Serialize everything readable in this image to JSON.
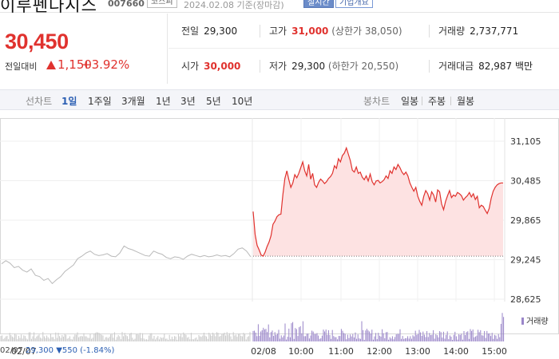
{
  "header": {
    "title": "이루펜다시스",
    "code": "007660",
    "market": "코스피",
    "date_text": "2024.02.08 기준(장마감)",
    "time_chip": "실시간",
    "info_chip": "기업개요"
  },
  "price": {
    "current": "30,450",
    "prev_label": "전일대비",
    "change": "1,150",
    "percent": "+3.92%",
    "direction": "up"
  },
  "stats": {
    "prev_close": {
      "label": "전일",
      "value": "29,300"
    },
    "high": {
      "label": "고가",
      "value": "31,000",
      "sub": "(상한가 38,050)"
    },
    "volume": {
      "label": "거래량",
      "value": "2,737,771"
    },
    "open": {
      "label": "시가",
      "value": "30,000"
    },
    "low": {
      "label": "저가",
      "value": "29,300",
      "sub": "(하한가 20,550)"
    },
    "amount": {
      "label": "거래대금",
      "value": "82,987 백만"
    }
  },
  "toolbar": {
    "line_chart_label": "선차트",
    "periods": [
      "1일",
      "1주일",
      "3개월",
      "1년",
      "3년",
      "5년",
      "10년"
    ],
    "active_period": "1일",
    "candle_label": "봉차트",
    "candles": [
      "일봉",
      "주봉",
      "월봉"
    ]
  },
  "chart_data": {
    "type": "line",
    "y_ticks": [
      "31,105",
      "30,485",
      "29,865",
      "29,245",
      "28,625"
    ],
    "x_ticks": [
      "02/07",
      "02/08",
      "10:00",
      "11:00",
      "12:00",
      "13:00",
      "14:00",
      "15:00"
    ],
    "ylim": [
      28625,
      31105
    ],
    "prev_close": 29300,
    "series": [
      {
        "name": "02/07",
        "values": [
          29180,
          29230,
          29190,
          29120,
          29140,
          29080,
          29050,
          29100,
          29000,
          28980,
          28920,
          28950,
          28870,
          28930,
          28980,
          29060,
          29110,
          29160,
          29260,
          29300,
          29350,
          29380,
          29330,
          29310,
          29320,
          29340,
          29300,
          29290,
          29350,
          29460,
          29420,
          29400,
          29370,
          29340,
          29310,
          29300,
          29380,
          29350,
          29330,
          29280,
          29260,
          29290,
          29280,
          29250,
          29300,
          29330,
          29310,
          29290,
          29310,
          29290,
          29300,
          29320,
          29300,
          29310,
          29290,
          29340,
          29410,
          29430,
          29380,
          29290
        ]
      },
      {
        "name": "02/08",
        "values": [
          30000,
          29640,
          29470,
          29400,
          29320,
          29300,
          29360,
          29450,
          29520,
          29620,
          29800,
          29850,
          29920,
          29950,
          29960,
          30270,
          30520,
          30640,
          30500,
          30380,
          30450,
          30580,
          30530,
          30600,
          30690,
          30780,
          30640,
          30560,
          30740,
          30510,
          30600,
          30420,
          30380,
          30460,
          30510,
          30480,
          30440,
          30470,
          30520,
          30550,
          30600,
          30720,
          30680,
          30830,
          30780,
          30880,
          30920,
          31000,
          30900,
          30800,
          30650,
          30620,
          30700,
          30600,
          30620,
          30540,
          30500,
          30560,
          30480,
          30590,
          30470,
          30420,
          30480,
          30490,
          30450,
          30470,
          30500,
          30560,
          30520,
          30640,
          30600,
          30700,
          30660,
          30740,
          30690,
          30620,
          30580,
          30620,
          30560,
          30450,
          30380,
          30320,
          30380,
          30240,
          30160,
          30100,
          30240,
          30330,
          30280,
          30180,
          30310,
          30260,
          30150,
          30340,
          30310,
          30120,
          30030,
          30160,
          30250,
          30330,
          30220,
          30260,
          30240,
          30300,
          30280,
          30250,
          30180,
          30220,
          30250,
          30300,
          30230,
          30280,
          30190,
          30240,
          30060,
          30100,
          30080,
          30020,
          29970,
          30050,
          30210,
          30320,
          30380,
          30420,
          30440,
          30450,
          30450
        ]
      }
    ],
    "volume_legend": "거래량",
    "footer": {
      "date": "02/07",
      "price": "29,300",
      "change": "▼550",
      "percent": "(-1.84%)"
    }
  }
}
